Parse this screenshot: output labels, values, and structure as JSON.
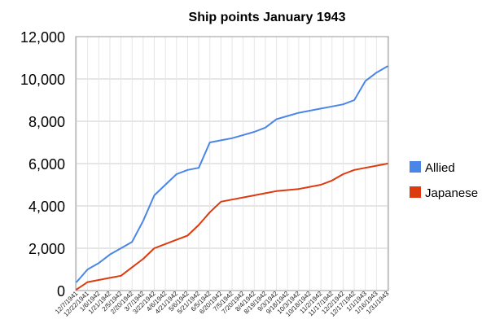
{
  "chart_data": {
    "type": "line",
    "title": "Ship points January 1943",
    "xlabel": "",
    "ylabel": "",
    "ylim": [
      0,
      12000
    ],
    "yticks": [
      "0",
      "2,000",
      "4,000",
      "6,000",
      "8,000",
      "10,000",
      "12,000"
    ],
    "ytick_values": [
      0,
      2000,
      4000,
      6000,
      8000,
      10000,
      12000
    ],
    "x_tick_labels": [
      "12/7/1941",
      "12/22/1941",
      "1/6/1942",
      "1/21/1942",
      "2/5/1942",
      "2/20/1942",
      "3/7/1942",
      "3/22/1942",
      "4/6/1942",
      "4/21/1942",
      "5/6/1942",
      "5/21/1942",
      "6/5/1942",
      "6/20/1942",
      "7/5/1942",
      "7/20/1942",
      "8/4/1942",
      "8/19/1942",
      "9/3/1942",
      "9/18/1942",
      "10/3/1942",
      "10/18/1942",
      "11/2/1942",
      "11/17/1942",
      "12/2/1942",
      "12/17/1942",
      "1/1/1943",
      "1/16/1943",
      "1/31/1943"
    ],
    "grid": true,
    "legend_position": "right",
    "series": [
      {
        "name": "Allied",
        "color": "#4a86e8",
        "values": [
          400,
          1000,
          1300,
          1700,
          2000,
          2300,
          3300,
          4500,
          5000,
          5500,
          5700,
          5800,
          7000,
          7100,
          7200,
          7350,
          7500,
          7700,
          8100,
          8250,
          8400,
          8500,
          8600,
          8700,
          8800,
          9000,
          9900,
          10300,
          10600
        ]
      },
      {
        "name": "Japanese",
        "color": "#dd3a0e",
        "values": [
          50,
          400,
          500,
          600,
          700,
          1100,
          1500,
          2000,
          2200,
          2400,
          2600,
          3100,
          3700,
          4200,
          4300,
          4400,
          4500,
          4600,
          4700,
          4750,
          4800,
          4900,
          5000,
          5200,
          5500,
          5700,
          5800,
          5900,
          6000
        ]
      }
    ]
  }
}
